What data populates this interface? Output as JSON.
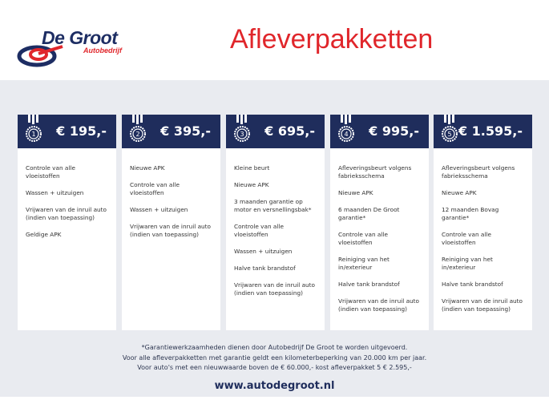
{
  "brand": {
    "name": "De Groot",
    "sub": "Autobedrijf"
  },
  "title": "Afleverpakketten",
  "colors": {
    "navy": "#1f2d5c",
    "red": "#e0262b",
    "band": "#e9ebf0"
  },
  "packages": [
    {
      "number": "1",
      "price": "€ 195,-",
      "items": [
        "Controle van alle vloeistoffen",
        "Wassen + uitzuigen",
        "Vrijwaren van de inruil auto (indien van toepassing)",
        "Geldige APK"
      ]
    },
    {
      "number": "2",
      "price": "€ 395,-",
      "items": [
        "Nieuwe APK",
        "Controle van alle vloeistoffen",
        "Wassen + uitzuigen",
        "Vrijwaren van de inruil auto (indien van toepassing)"
      ]
    },
    {
      "number": "3",
      "price": "€ 695,-",
      "items": [
        "Kleine beurt",
        "Nieuwe APK",
        "3 maanden garantie op motor en versnellingsbak*",
        "Controle van alle vloeistoffen",
        "Wassen + uitzuigen",
        "Halve tank brandstof",
        "Vrijwaren van de inruil auto (indien van toepassing)"
      ]
    },
    {
      "number": "4",
      "price": "€ 995,-",
      "items": [
        "Afleveringsbeurt volgens fabrieksschema",
        "Nieuwe APK",
        "6 maanden De Groot garantie*",
        "Controle van alle vloeistoffen",
        "Reiniging van het in/exterieur",
        "Halve tank brandstof",
        "Vrijwaren van de inruil auto (indien van toepassing)"
      ]
    },
    {
      "number": "5",
      "price": "€ 1.595,-",
      "items": [
        "Afleveringsbeurt volgens fabrieksschema",
        "Nieuwe APK",
        "12 maanden Bovag garantie*",
        "Controle van alle vloeistoffen",
        "Reiniging van het in/exterieur",
        "Halve tank brandstof",
        "Vrijwaren van de inruil auto (indien van toepassing)"
      ]
    }
  ],
  "notes": [
    "*Garantiewerkzaamheden dienen door Autobedrijf De Groot te worden uitgevoerd.",
    "Voor alle afleverpakketten met garantie geldt een kilometerbeperking van 20.000 km per jaar.",
    "Voor auto's met een nieuwwaarde boven de € 60.000,- kost afleverpakket 5 € 2.595,-"
  ],
  "url": "www.autodegroot.nl"
}
